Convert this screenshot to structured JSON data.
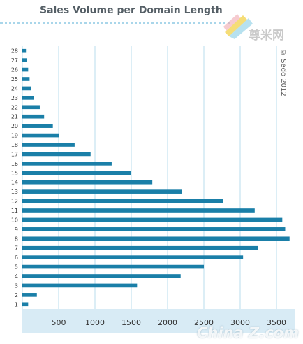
{
  "chart_data": {
    "type": "bar",
    "orientation": "horizontal",
    "title": "Sales Volume per Domain Length",
    "xlabel": "",
    "ylabel": "",
    "categories": [
      "1",
      "2",
      "3",
      "4",
      "5",
      "6",
      "7",
      "8",
      "9",
      "10",
      "11",
      "12",
      "13",
      "14",
      "15",
      "16",
      "17",
      "18",
      "19",
      "20",
      "21",
      "22",
      "23",
      "24",
      "25",
      "26",
      "27",
      "28"
    ],
    "values": [
      80,
      200,
      1580,
      2180,
      2500,
      3040,
      3250,
      3680,
      3620,
      3580,
      3200,
      2760,
      2200,
      1790,
      1500,
      1230,
      940,
      720,
      500,
      420,
      300,
      240,
      160,
      120,
      100,
      80,
      60,
      50
    ],
    "x_ticks": [
      500,
      1000,
      1500,
      2000,
      2500,
      3000,
      3500
    ],
    "xlim": [
      0,
      3750
    ],
    "grid": true,
    "bar_color": "#1a7fa8",
    "grid_color": "#b9dced",
    "axis_band_color": "#d8ebf5"
  },
  "copyright": "© Sedo 2012",
  "logo_text": "尊米网",
  "watermark_text": "China Z.com",
  "logo_colors": [
    "#f2d24a",
    "#9fd7ea",
    "#f0a8b0",
    "#b8d977"
  ]
}
